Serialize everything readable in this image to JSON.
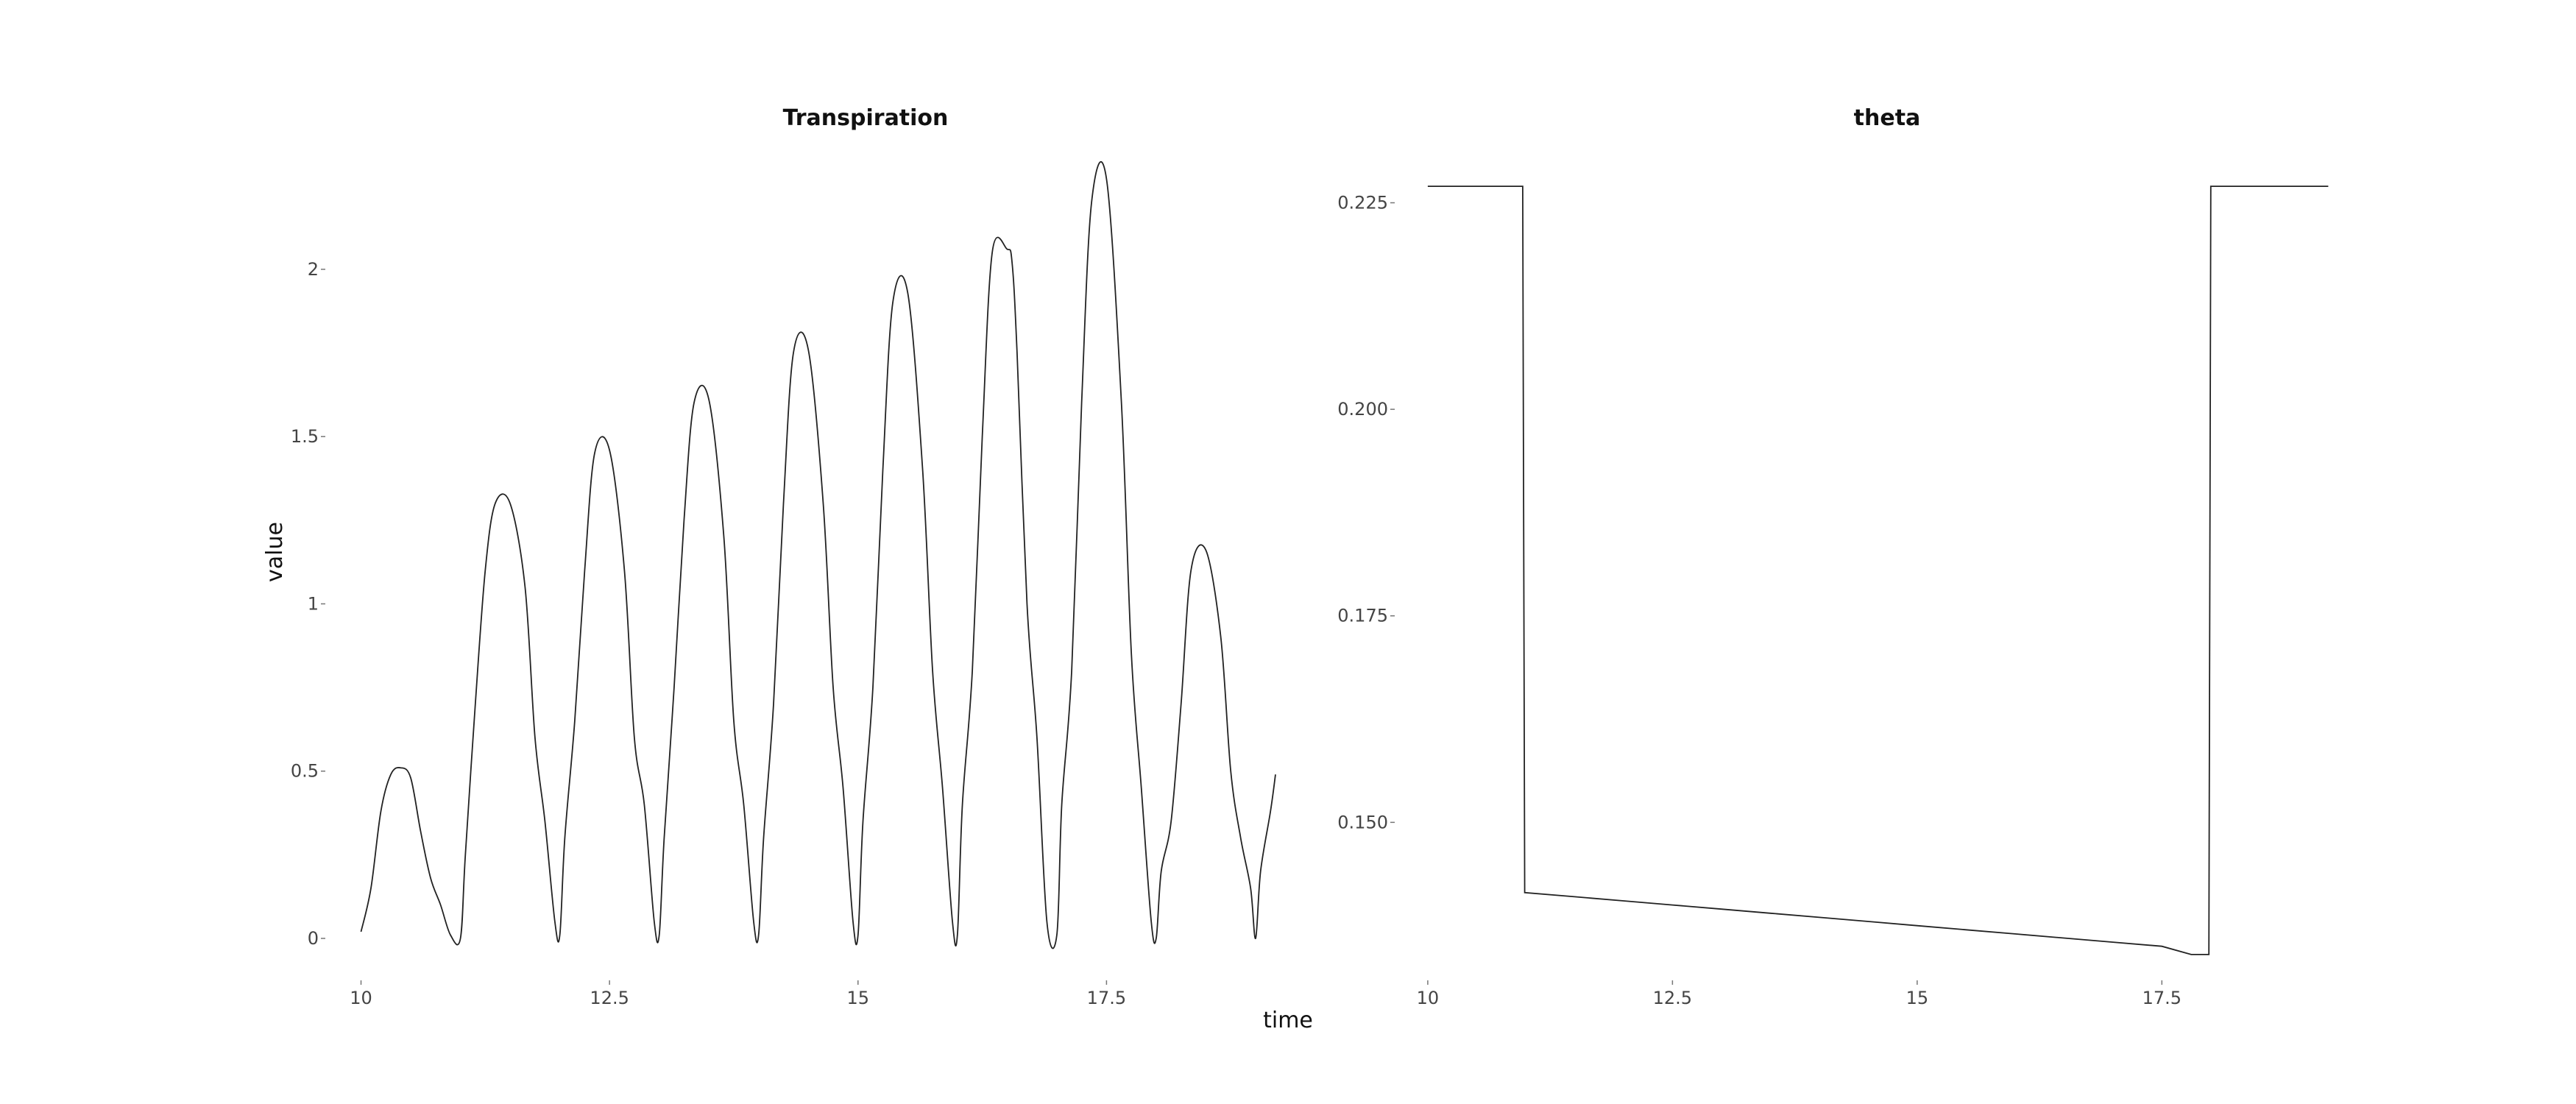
{
  "chart_data": [
    {
      "type": "line",
      "title": "Transpiration",
      "ylabel": "value",
      "xlim": [
        9.7,
        19.4
      ],
      "ylim": [
        -0.11,
        2.31
      ],
      "x_ticks": [
        10,
        12.5,
        15,
        17.5
      ],
      "x_tick_labels": [
        "10",
        "12.5",
        "15",
        "17.5"
      ],
      "y_ticks": [
        0,
        0.5,
        1,
        1.5,
        2
      ],
      "y_tick_labels": [
        "0",
        "0.5",
        "1",
        "1.5",
        "2"
      ],
      "grid": false,
      "series": [
        {
          "x": [
            10.0,
            10.1,
            10.2,
            10.3,
            10.4,
            10.5,
            10.6,
            10.7,
            10.8,
            10.9,
            11.0,
            11.05,
            11.15,
            11.25,
            11.35,
            11.5,
            11.65,
            11.75,
            11.85,
            11.95,
            12.0,
            12.05,
            12.15,
            12.25,
            12.35,
            12.5,
            12.65,
            12.75,
            12.85,
            12.95,
            13.0,
            13.05,
            13.15,
            13.25,
            13.35,
            13.5,
            13.65,
            13.75,
            13.85,
            13.95,
            14.0,
            14.05,
            14.15,
            14.25,
            14.35,
            14.5,
            14.65,
            14.75,
            14.85,
            14.95,
            15.0,
            15.05,
            15.15,
            15.25,
            15.35,
            15.5,
            15.65,
            15.75,
            15.85,
            15.95,
            16.0,
            16.05,
            16.15,
            16.25,
            16.35,
            16.5,
            16.55,
            16.6,
            16.7,
            16.8,
            16.9,
            17.0,
            17.05,
            17.15,
            17.25,
            17.35,
            17.5,
            17.65,
            17.75,
            17.85,
            17.95,
            18.0,
            18.05,
            18.15,
            18.25,
            18.35,
            18.5,
            18.65,
            18.75,
            18.85,
            18.95,
            19.0,
            19.05,
            19.15,
            19.2
          ],
          "values": [
            0.02,
            0.15,
            0.38,
            0.49,
            0.51,
            0.48,
            0.32,
            0.18,
            0.1,
            0.01,
            0.0,
            0.25,
            0.7,
            1.1,
            1.3,
            1.3,
            1.05,
            0.6,
            0.35,
            0.05,
            0.01,
            0.3,
            0.65,
            1.1,
            1.45,
            1.46,
            1.1,
            0.6,
            0.4,
            0.05,
            0.01,
            0.3,
            0.75,
            1.25,
            1.6,
            1.61,
            1.2,
            0.65,
            0.4,
            0.05,
            0.01,
            0.3,
            0.7,
            1.3,
            1.75,
            1.76,
            1.3,
            0.75,
            0.45,
            0.05,
            0.01,
            0.35,
            0.75,
            1.4,
            1.9,
            1.93,
            1.4,
            0.8,
            0.45,
            0.05,
            0.01,
            0.4,
            0.8,
            1.5,
            2.05,
            2.06,
            2.02,
            1.75,
            1.0,
            0.6,
            0.05,
            0.01,
            0.4,
            0.8,
            1.6,
            2.2,
            2.27,
            1.6,
            0.85,
            0.45,
            0.05,
            0.0,
            0.2,
            0.35,
            0.7,
            1.1,
            1.16,
            0.9,
            0.5,
            0.3,
            0.15,
            0.0,
            0.2,
            0.38,
            0.49
          ]
        }
      ]
    },
    {
      "type": "line",
      "title": "theta",
      "ylabel": "",
      "xlim": [
        9.7,
        19.4
      ],
      "ylim": [
        0.1315,
        0.2295
      ],
      "x_ticks": [
        10,
        12.5,
        15,
        17.5
      ],
      "x_tick_labels": [
        "10",
        "12.5",
        "15",
        "17.5"
      ],
      "y_ticks": [
        0.15,
        0.175,
        0.2,
        0.225
      ],
      "y_tick_labels": [
        "0.150",
        "0.175",
        "0.200",
        "0.225"
      ],
      "grid": false,
      "series": [
        {
          "x": [
            10.0,
            10.97,
            10.99,
            11.5,
            12.0,
            12.5,
            13.0,
            13.5,
            14.0,
            14.5,
            15.0,
            15.5,
            16.0,
            16.5,
            17.0,
            17.5,
            17.8,
            17.98,
            18.0,
            19.2
          ],
          "values": [
            0.227,
            0.227,
            0.1415,
            0.141,
            0.1405,
            0.14,
            0.1395,
            0.139,
            0.1385,
            0.138,
            0.1375,
            0.137,
            0.1365,
            0.136,
            0.1355,
            0.135,
            0.134,
            0.134,
            0.227,
            0.227
          ]
        }
      ]
    }
  ],
  "shared_xlabel": "time"
}
